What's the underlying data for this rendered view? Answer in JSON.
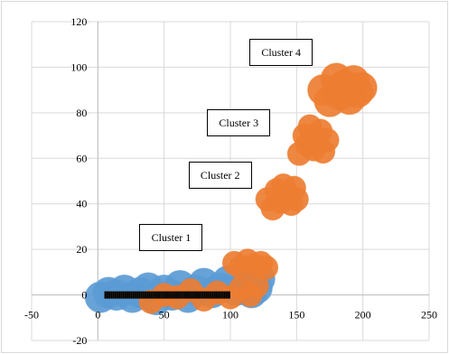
{
  "chart_data": {
    "type": "scatter",
    "title": "",
    "xlabel": "",
    "ylabel": "",
    "xlim": [
      -50,
      250
    ],
    "ylim": [
      -20,
      120
    ],
    "x_ticks": [
      -50,
      0,
      50,
      100,
      150,
      200,
      250
    ],
    "y_ticks": [
      -20,
      0,
      20,
      40,
      60,
      80,
      100,
      120
    ],
    "grid": "vertical and horizontal",
    "legend": "none",
    "colors": {
      "blue_bubbles": "#5b9bd5",
      "orange_bubbles": "#ed7d31",
      "line_points": "#000000",
      "grid": "#d9d9d9",
      "axis": "#bfbfbf"
    },
    "series": [
      {
        "marker": "bubble",
        "color": "#5b9bd5",
        "points": [
          [
            2,
            -1
          ],
          [
            8,
            1
          ],
          [
            14,
            0
          ],
          [
            20,
            2
          ],
          [
            26,
            -1
          ],
          [
            32,
            1
          ],
          [
            38,
            3
          ],
          [
            44,
            -2
          ],
          [
            50,
            2
          ],
          [
            56,
            0
          ],
          [
            62,
            4
          ],
          [
            68,
            -1
          ],
          [
            74,
            2
          ],
          [
            80,
            5
          ],
          [
            86,
            1
          ],
          [
            92,
            3
          ],
          [
            98,
            6
          ],
          [
            104,
            2
          ],
          [
            110,
            4
          ],
          [
            116,
            1
          ],
          [
            120,
            3
          ],
          [
            122,
            7
          ]
        ]
      },
      {
        "marker": "bubble",
        "color": "#ed7d31",
        "points": [
          [
            40,
            -3
          ],
          [
            50,
            0
          ],
          [
            60,
            -1
          ],
          [
            70,
            2
          ],
          [
            80,
            -2
          ],
          [
            90,
            1
          ],
          [
            100,
            -1
          ],
          [
            108,
            3
          ],
          [
            115,
            0
          ],
          [
            120,
            4
          ],
          [
            103,
            14
          ],
          [
            108,
            12
          ],
          [
            113,
            15
          ],
          [
            118,
            13
          ],
          [
            123,
            14
          ],
          [
            127,
            12
          ],
          [
            128,
            42
          ],
          [
            132,
            38
          ],
          [
            135,
            46
          ],
          [
            138,
            41
          ],
          [
            140,
            48
          ],
          [
            143,
            44
          ],
          [
            146,
            40
          ],
          [
            148,
            47
          ],
          [
            150,
            42
          ],
          [
            152,
            62
          ],
          [
            156,
            70
          ],
          [
            158,
            66
          ],
          [
            160,
            74
          ],
          [
            163,
            64
          ],
          [
            165,
            69
          ],
          [
            168,
            72
          ],
          [
            170,
            63
          ],
          [
            173,
            68
          ],
          [
            170,
            90
          ],
          [
            175,
            85
          ],
          [
            180,
            95
          ],
          [
            183,
            88
          ],
          [
            186,
            92
          ],
          [
            190,
            86
          ],
          [
            193,
            94
          ],
          [
            196,
            89
          ],
          [
            199,
            91
          ]
        ]
      },
      {
        "marker": "line",
        "color": "#000000",
        "points": [
          [
            5,
            0
          ],
          [
            100,
            0
          ]
        ]
      }
    ],
    "annotations": [
      {
        "text": "Cluster 1",
        "x": 56,
        "y": 25
      },
      {
        "text": "Cluster 2",
        "x": 93,
        "y": 52
      },
      {
        "text": "Cluster 3",
        "x": 107,
        "y": 75
      },
      {
        "text": "Cluster 4",
        "x": 139,
        "y": 106
      }
    ]
  }
}
